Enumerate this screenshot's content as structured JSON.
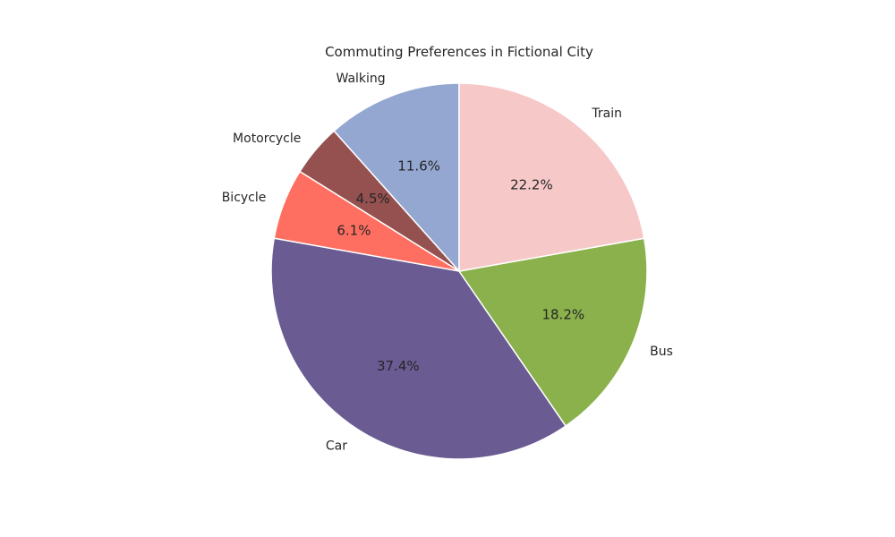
{
  "chart_data": {
    "type": "pie",
    "title": "Commuting Preferences in Fictional City",
    "start_angle_deg": 90,
    "direction": "counterclockwise",
    "order": [
      "Walking",
      "Motorcycle",
      "Bicycle",
      "Car",
      "Bus",
      "Train"
    ],
    "slices": [
      {
        "label": "Walking",
        "value": 11.6,
        "pct_label": "11.6%",
        "color": "#94a7d1"
      },
      {
        "label": "Motorcycle",
        "value": 4.5,
        "pct_label": "4.5%",
        "color": "#945150"
      },
      {
        "label": "Bicycle",
        "value": 6.1,
        "pct_label": "6.1%",
        "color": "#ff6f61"
      },
      {
        "label": "Car",
        "value": 37.4,
        "pct_label": "37.4%",
        "color": "#6a5b93"
      },
      {
        "label": "Bus",
        "value": 18.2,
        "pct_label": "18.2%",
        "color": "#8ab14b"
      },
      {
        "label": "Train",
        "value": 22.2,
        "pct_label": "22.2%",
        "color": "#f7c8c8"
      }
    ]
  }
}
